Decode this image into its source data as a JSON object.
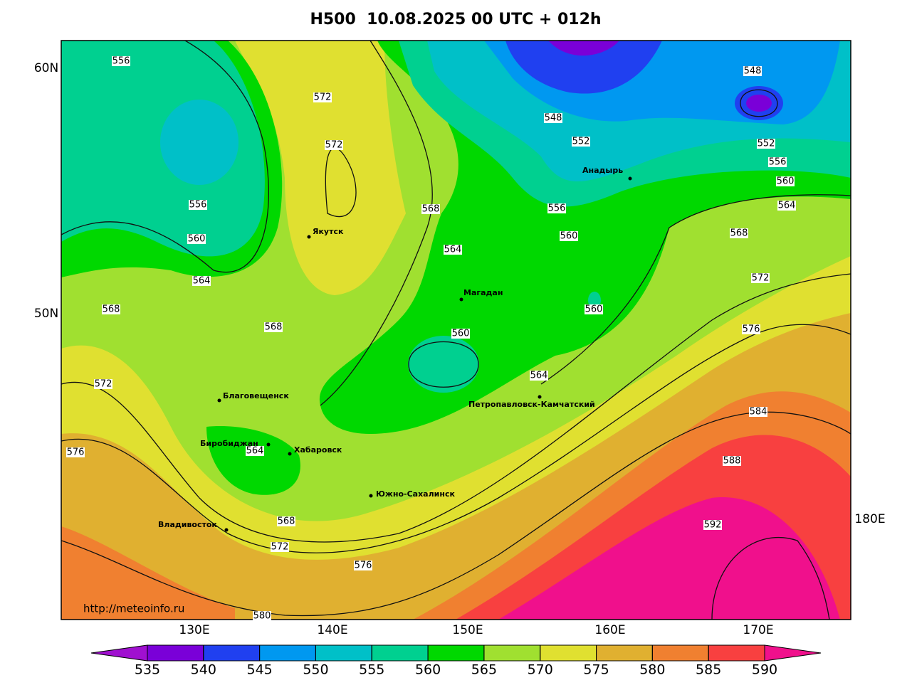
{
  "title": "H500  10.08.2025 00 UTC + 012h",
  "latitude_labels": [
    "60N",
    "50N"
  ],
  "longitude_labels": [
    "130E",
    "140E",
    "150E",
    "160E",
    "170E",
    "180E"
  ],
  "contour_labels": [
    556,
    572,
    572,
    548,
    552,
    548,
    552,
    556,
    560,
    564,
    556,
    560,
    564,
    568,
    564,
    556,
    560,
    568,
    572,
    576,
    560,
    568,
    568,
    560,
    564,
    572,
    576,
    564,
    568,
    572,
    576,
    580,
    584,
    588,
    592
  ],
  "cities": [
    "Якутск",
    "Магадан",
    "Анадырь",
    "Благовещенск",
    "Биробиджан",
    "Хабаровск",
    "Петропавловск-Камчатский",
    "Южно-Сахалинск",
    "Владивосток"
  ],
  "source": "http://meteoinfo.ru",
  "colorbar": {
    "ticks": [
      535,
      540,
      545,
      550,
      555,
      560,
      565,
      570,
      575,
      580,
      585,
      590
    ],
    "colors": [
      "#a010d0",
      "#7a00d8",
      "#2040f0",
      "#0098f0",
      "#00c0c8",
      "#00d090",
      "#00d800",
      "#a0e030",
      "#e0e030",
      "#e0b030",
      "#f08030",
      "#f84040",
      "#f0108c"
    ]
  }
}
